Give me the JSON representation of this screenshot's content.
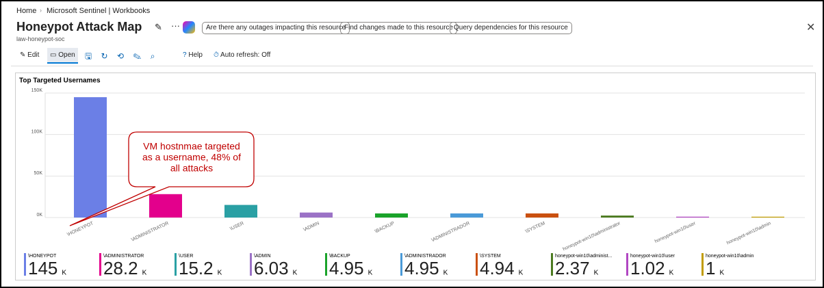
{
  "breadcrumb": [
    "Home",
    "Microsoft Sentinel | Workbooks"
  ],
  "title": "Honeypot Attack Map",
  "subtitle": "law-honeypot-soc",
  "suggestions": [
    "Are there any outages impacting this resource",
    "Find changes made to this resource",
    "Query dependencies for this resource"
  ],
  "toolbar": {
    "edit": "Edit",
    "open": "Open",
    "help": "Help",
    "auto_refresh": "Auto refresh: Off"
  },
  "chart_data": {
    "type": "bar",
    "title": "Top Targeted Usernames",
    "categories": [
      "\\HONEYPOT",
      "\\ADMINISTRATOR",
      "\\USER",
      "\\ADMIN",
      "\\BACKUP",
      "\\ADMINISTRADOR",
      "\\SYSTEM",
      "honeypot-win10\\administrator",
      "honeypot-win10\\user",
      "honeypot-win10\\admin"
    ],
    "values": [
      145,
      28.2,
      15.2,
      6.03,
      4.95,
      4.95,
      4.94,
      2.37,
      1.02,
      1
    ],
    "colors": [
      "#6b7fe6",
      "#e3008c",
      "#2aa0a4",
      "#9b72c6",
      "#1aa32a",
      "#4a9ad8",
      "#ca5010",
      "#4b7a1f",
      "#b146c2",
      "#c19c00"
    ],
    "ylim": [
      0,
      150
    ],
    "yticks": [
      {
        "value": 0,
        "label": "0K"
      },
      {
        "value": 50,
        "label": "50K"
      },
      {
        "value": 100,
        "label": "100K"
      },
      {
        "value": 150,
        "label": "150K"
      }
    ],
    "grid": true,
    "annotation": [
      "VM hostnmae targeted",
      "as a username, 48% of",
      "all attacks"
    ],
    "tile_labels": [
      "\\HONEYPOT",
      "\\ADMINISTRATOR",
      "\\USER",
      "\\ADMIN",
      "\\BACKUP",
      "\\ADMINISTRADOR",
      "\\SYSTEM",
      "honeypot-win10\\administ...",
      "honeypot-win10\\user",
      "honeypot-win10\\admin"
    ],
    "unit": "K"
  }
}
